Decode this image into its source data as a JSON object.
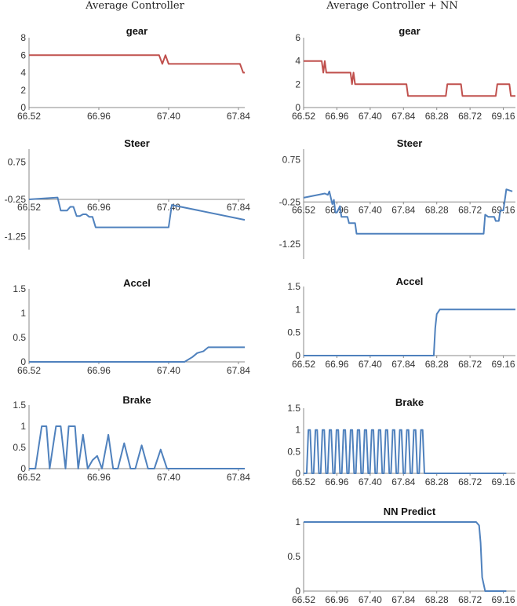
{
  "headers": {
    "left": "Average Controller",
    "right": "Average Controller + NN"
  },
  "chart_data": [
    {
      "id": "gear-left",
      "type": "line",
      "title": "gear",
      "color": "#c0504d",
      "yticks": [
        "8",
        "6",
        "4",
        "2",
        "0"
      ],
      "ylim": [
        0,
        8
      ],
      "xticks": [
        "66.52",
        "66.96",
        "67.40",
        "67.84"
      ],
      "xlim": [
        66.52,
        67.88
      ],
      "x": [
        66.52,
        67.34,
        67.36,
        67.38,
        67.4,
        67.85,
        67.87,
        67.88
      ],
      "y": [
        6,
        6,
        5,
        6,
        5,
        5,
        4,
        4
      ]
    },
    {
      "id": "gear-right",
      "type": "line",
      "title": "gear",
      "color": "#c0504d",
      "yticks": [
        "6",
        "4",
        "2",
        "0"
      ],
      "ylim": [
        0,
        6
      ],
      "xticks": [
        "66.52",
        "66.96",
        "67.40",
        "67.84",
        "68.28",
        "68.72",
        "69.16"
      ],
      "xlim": [
        66.52,
        69.32
      ],
      "x": [
        66.52,
        66.76,
        66.78,
        66.8,
        66.82,
        67.14,
        67.16,
        67.18,
        67.2,
        67.88,
        67.9,
        68.4,
        68.42,
        68.6,
        68.62,
        69.06,
        69.08,
        69.24,
        69.26,
        69.32
      ],
      "y": [
        4,
        4,
        3,
        4,
        3,
        3,
        2,
        3,
        2,
        2,
        1,
        1,
        2,
        2,
        1,
        1,
        2,
        2,
        1,
        1
      ]
    },
    {
      "id": "steer-left",
      "type": "line",
      "title": "Steer",
      "color": "#4f81bd",
      "yticks": [
        "0.75",
        "-0.25",
        "-1.25"
      ],
      "ylim": [
        -1.25,
        0.75
      ],
      "ymin": -1.6,
      "ymax": 1.1,
      "tick_at": "0.75,-0.25,-1.25",
      "xticks": [
        "66.52",
        "66.96",
        "67.40",
        "67.84"
      ],
      "xlim": [
        66.52,
        67.88
      ],
      "x": [
        66.52,
        66.7,
        66.72,
        66.76,
        66.78,
        66.8,
        66.82,
        66.84,
        66.86,
        66.88,
        66.9,
        66.92,
        66.94,
        66.96,
        66.98,
        67.0,
        67.4,
        67.42,
        67.88
      ],
      "y": [
        -0.25,
        -0.2,
        -0.55,
        -0.55,
        -0.45,
        -0.45,
        -0.7,
        -0.7,
        -0.65,
        -0.65,
        -0.72,
        -0.72,
        -1.0,
        -1.0,
        -1.0,
        -1.0,
        -1.0,
        -0.4,
        -0.8
      ]
    },
    {
      "id": "steer-right",
      "type": "line",
      "title": "Steer",
      "color": "#4f81bd",
      "yticks": [
        "0.75",
        "-0.25",
        "-1.25"
      ],
      "ylim": [
        -1.25,
        0.75
      ],
      "ymin": -1.6,
      "ymax": 1.0,
      "tick_at": "0.75,-0.25,-1.25",
      "xticks": [
        "66.52",
        "66.96",
        "67.40",
        "67.84",
        "68.28",
        "68.72",
        "69.16"
      ],
      "xlim": [
        66.52,
        69.32
      ],
      "x": [
        66.52,
        66.8,
        66.84,
        66.86,
        66.9,
        66.92,
        66.94,
        66.96,
        67.0,
        67.02,
        67.1,
        67.12,
        67.2,
        67.22,
        68.9,
        68.92,
        68.96,
        68.98,
        69.04,
        69.06,
        69.1,
        69.12,
        69.16,
        69.2,
        69.28
      ],
      "y": [
        -0.15,
        -0.05,
        -0.08,
        0.0,
        -0.3,
        -0.2,
        -0.5,
        -0.5,
        -0.35,
        -0.6,
        -0.6,
        -0.75,
        -0.75,
        -1.0,
        -1.0,
        -0.55,
        -0.6,
        -0.6,
        -0.6,
        -0.7,
        -0.7,
        -0.45,
        -0.45,
        0.05,
        0.0
      ]
    },
    {
      "id": "accel-left",
      "type": "line",
      "title": "Accel",
      "color": "#4f81bd",
      "yticks": [
        "1.5",
        "1",
        "0.5",
        "0"
      ],
      "ylim": [
        0,
        1.5
      ],
      "xticks": [
        "66.52",
        "66.96",
        "67.40",
        "67.84"
      ],
      "xlim": [
        66.52,
        67.88
      ],
      "x": [
        66.52,
        67.5,
        67.55,
        67.58,
        67.62,
        67.65,
        67.88
      ],
      "y": [
        0,
        0,
        0.1,
        0.18,
        0.22,
        0.3,
        0.3
      ]
    },
    {
      "id": "accel-right",
      "type": "line",
      "title": "Accel",
      "color": "#4f81bd",
      "yticks": [
        "1.5",
        "1",
        "0.5",
        "0"
      ],
      "ylim": [
        0,
        1.5
      ],
      "xticks": [
        "66.52",
        "66.96",
        "67.40",
        "67.84",
        "68.28",
        "68.72",
        "69.16"
      ],
      "xlim": [
        66.52,
        69.32
      ],
      "x": [
        66.52,
        68.24,
        68.26,
        68.28,
        68.32,
        69.32
      ],
      "y": [
        0,
        0,
        0.6,
        0.9,
        1.0,
        1.0
      ]
    },
    {
      "id": "brake-left",
      "type": "line",
      "title": "Brake",
      "color": "#4f81bd",
      "yticks": [
        "1.5",
        "1",
        "0.5",
        "0"
      ],
      "ylim": [
        0,
        1.5
      ],
      "xticks": [
        "66.52",
        "66.96",
        "67.40",
        "67.84"
      ],
      "xlim": [
        66.52,
        67.88
      ],
      "x": [
        66.52,
        66.56,
        66.6,
        66.63,
        66.65,
        66.69,
        66.72,
        66.75,
        66.77,
        66.81,
        66.83,
        66.86,
        66.89,
        66.92,
        66.95,
        66.98,
        67.02,
        67.05,
        67.08,
        67.12,
        67.16,
        67.19,
        67.23,
        67.27,
        67.31,
        67.35,
        67.39,
        67.43,
        67.47,
        67.88
      ],
      "y": [
        0,
        0,
        1.0,
        1.0,
        0,
        1.0,
        1.0,
        0,
        1.0,
        1.0,
        0,
        0.8,
        0,
        0.2,
        0.3,
        0,
        0.8,
        0,
        0,
        0.6,
        0,
        0,
        0.55,
        0,
        0,
        0.45,
        0,
        0,
        0,
        0
      ]
    },
    {
      "id": "brake-right",
      "type": "line",
      "title": "Brake",
      "color": "#4f81bd",
      "yticks": [
        "1.5",
        "1",
        "0.5",
        "0"
      ],
      "ylim": [
        0,
        1.5
      ],
      "xticks": [
        "66.52",
        "66.96",
        "67.40",
        "67.84",
        "68.28",
        "68.72",
        "69.16"
      ],
      "xlim": [
        66.52,
        69.32
      ],
      "pulses": {
        "start": 66.56,
        "end": 68.14,
        "count": 17,
        "peak": 1.0
      },
      "x": [
        66.52,
        69.32
      ],
      "y": [
        0,
        0
      ]
    },
    {
      "id": "nn-predict",
      "type": "line",
      "title": "NN Predict",
      "color": "#4f81bd",
      "yticks": [
        "1",
        "0.5",
        "0"
      ],
      "ylim": [
        0,
        1
      ],
      "xticks": [
        "66.52",
        "66.96",
        "67.40",
        "67.84",
        "68.28",
        "68.72",
        "69.16"
      ],
      "xlim": [
        66.52,
        69.32
      ],
      "x": [
        66.52,
        68.8,
        68.84,
        68.86,
        68.88,
        68.92,
        69.2
      ],
      "y": [
        1,
        1,
        0.95,
        0.7,
        0.2,
        0.0,
        0.0
      ]
    }
  ]
}
